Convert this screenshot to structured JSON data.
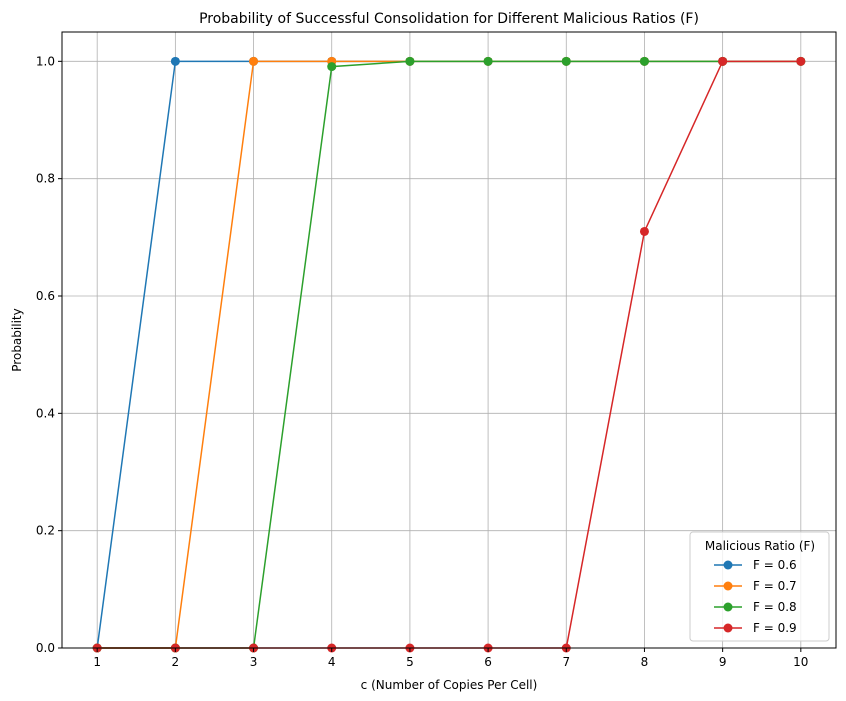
{
  "chart_data": {
    "type": "line",
    "title": "Probability of Successful Consolidation for Different Malicious Ratios (F)",
    "xlabel": "c (Number of Copies Per Cell)",
    "ylabel": "Probability",
    "xlim": [
      0.55,
      10.45
    ],
    "ylim": [
      0,
      1.05
    ],
    "xticks": [
      1,
      2,
      3,
      4,
      5,
      6,
      7,
      8,
      9,
      10
    ],
    "yticks": [
      0.0,
      0.2,
      0.4,
      0.6,
      0.8,
      1.0
    ],
    "ytick_labels": [
      "0.0",
      "0.2",
      "0.4",
      "0.6",
      "0.8",
      "1.0"
    ],
    "grid": true,
    "legend": {
      "title": "Malicious Ratio (F)",
      "placement": "bottom-right"
    },
    "x": [
      1,
      2,
      3,
      4,
      5,
      6,
      7,
      8,
      9,
      10
    ],
    "series": [
      {
        "name": "F = 0.6",
        "color": "#1f77b4",
        "values": [
          0,
          1,
          1,
          1,
          1,
          1,
          1,
          1,
          1,
          1
        ]
      },
      {
        "name": "F = 0.7",
        "color": "#ff7f0e",
        "values": [
          0,
          0,
          1,
          1,
          1,
          1,
          1,
          1,
          1,
          1
        ]
      },
      {
        "name": "F = 0.8",
        "color": "#2ca02c",
        "values": [
          0,
          0,
          0,
          0.991,
          1,
          1,
          1,
          1,
          1,
          1
        ]
      },
      {
        "name": "F = 0.9",
        "color": "#d62728",
        "values": [
          0,
          0,
          0,
          0,
          0,
          0,
          0,
          0.71,
          1,
          1
        ]
      }
    ]
  }
}
